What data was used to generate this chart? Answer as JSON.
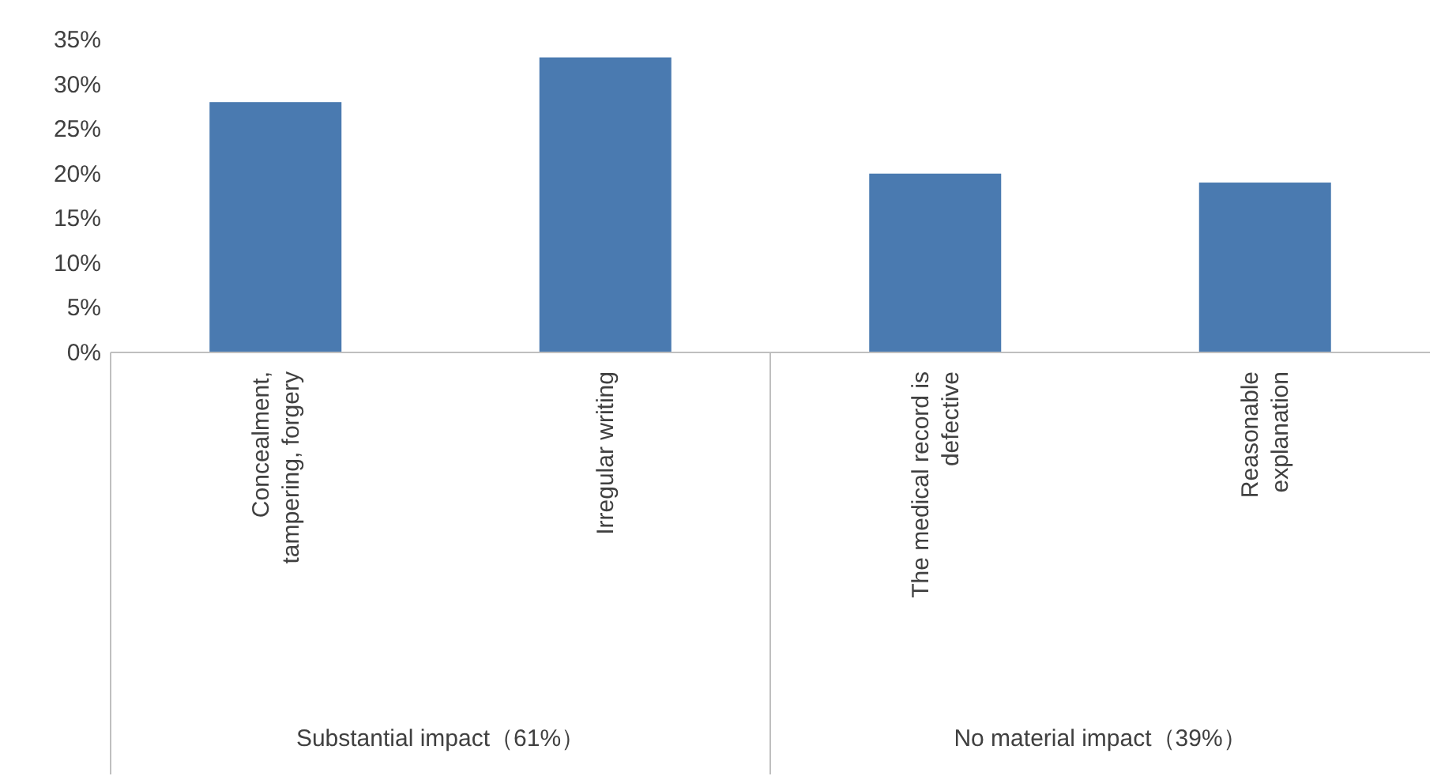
{
  "chart_data": {
    "type": "bar",
    "categories": [
      "Concealment, tampering, forgery",
      "Irregular writing",
      "The medical record is defective",
      "Reasonable explanation"
    ],
    "values": [
      28,
      33,
      20,
      19
    ],
    "color": "#4a7ab0",
    "ylim": [
      0,
      35
    ],
    "yticks": [
      {
        "value": 0,
        "label": "0%"
      },
      {
        "value": 5,
        "label": "5%"
      },
      {
        "value": 10,
        "label": "10%"
      },
      {
        "value": 15,
        "label": "15%"
      },
      {
        "value": 20,
        "label": "20%"
      },
      {
        "value": 25,
        "label": "25%"
      },
      {
        "value": 30,
        "label": "30%"
      },
      {
        "value": 35,
        "label": "35%"
      }
    ],
    "annotations": [
      "Substantial impact（61%）",
      "No material impact（39%）"
    ]
  }
}
